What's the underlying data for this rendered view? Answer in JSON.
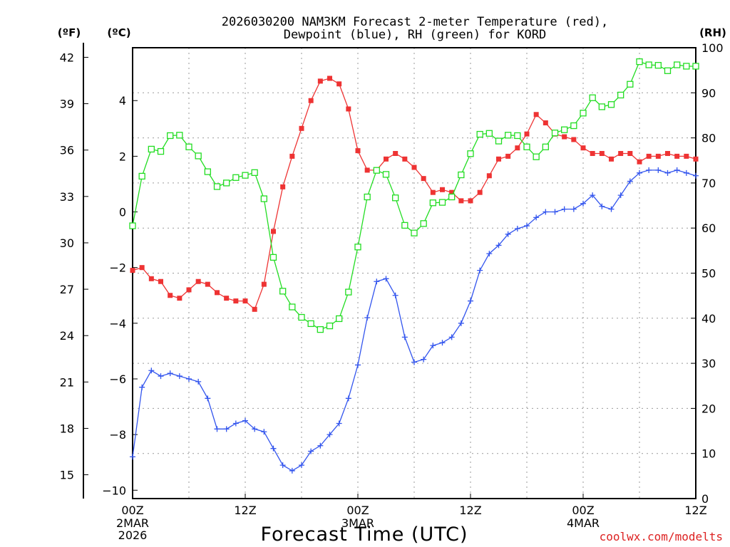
{
  "chart_data": {
    "type": "line",
    "title_line1": "2026030200 NAM3KM Forecast 2-meter Temperature (red),",
    "title_line2": "Dewpoint (blue), RH (green) for KORD",
    "xlabel": "Forecast Time (UTC)",
    "credit": "coolwx.com/modelts",
    "units": {
      "fahrenheit": "(ºF)",
      "celsius": "(ºC)",
      "rh": "(RH)"
    },
    "x_hours_range": [
      0,
      60
    ],
    "x_ticks": [
      {
        "hour": 0,
        "line1": "00Z",
        "line2": "2MAR",
        "line3": "2026"
      },
      {
        "hour": 12,
        "line1": "12Z",
        "line2": "",
        "line3": ""
      },
      {
        "hour": 24,
        "line1": "00Z",
        "line2": "3MAR",
        "line3": ""
      },
      {
        "hour": 36,
        "line1": "12Z",
        "line2": "",
        "line3": ""
      },
      {
        "hour": 48,
        "line1": "00Z",
        "line2": "4MAR",
        "line3": ""
      },
      {
        "hour": 60,
        "line1": "12Z",
        "line2": "",
        "line3": ""
      }
    ],
    "celsius_axis": {
      "range": [
        -10.3,
        5.9
      ],
      "ticks": [
        4,
        2,
        0,
        -2,
        -4,
        -6,
        -8,
        -10
      ],
      "tick_labels": [
        "4",
        "2",
        "0",
        "−2",
        "−4",
        "−6",
        "−8",
        "−10"
      ]
    },
    "fahrenheit_axis": {
      "range": [
        13.46,
        42.62
      ],
      "ticks": [
        42,
        39,
        36,
        33,
        30,
        27,
        24,
        21,
        18,
        15
      ],
      "tick_labels": [
        "42",
        "39",
        "36",
        "33",
        "30",
        "27",
        "24",
        "21",
        "18",
        "15"
      ]
    },
    "rh_axis": {
      "range": [
        0,
        100
      ],
      "ticks": [
        100,
        90,
        80,
        70,
        60,
        50,
        40,
        30,
        20,
        10,
        0
      ],
      "tick_labels": [
        "100",
        "90",
        "80",
        "70",
        "60",
        "50",
        "40",
        "30",
        "20",
        "10",
        "0"
      ]
    },
    "series": [
      {
        "name": "Temperature",
        "unit": "C",
        "color": "#ee3333",
        "marker": "filled-square",
        "x": [
          0,
          1,
          2,
          3,
          4,
          5,
          6,
          7,
          8,
          9,
          10,
          11,
          12,
          13,
          14,
          15,
          16,
          17,
          18,
          19,
          20,
          21,
          22,
          23,
          24,
          25,
          26,
          27,
          28,
          29,
          30,
          31,
          32,
          33,
          34,
          35,
          36,
          37,
          38,
          39,
          40,
          41,
          42,
          43,
          44,
          45,
          46,
          47,
          48,
          49,
          50,
          51,
          52,
          53,
          54,
          55,
          56,
          57,
          58,
          59,
          60
        ],
        "values": [
          -2.1,
          -2.0,
          -2.4,
          -2.5,
          -3.0,
          -3.1,
          -2.8,
          -2.5,
          -2.6,
          -2.9,
          -3.1,
          -3.2,
          -3.2,
          -3.5,
          -2.6,
          -0.7,
          0.9,
          2.0,
          3.0,
          4.0,
          4.7,
          4.8,
          4.6,
          3.7,
          2.2,
          1.5,
          1.5,
          1.9,
          2.1,
          1.9,
          1.6,
          1.2,
          0.7,
          0.8,
          0.7,
          0.4,
          0.4,
          0.7,
          1.3,
          1.9,
          2.0,
          2.3,
          2.8,
          3.5,
          3.2,
          2.8,
          2.7,
          2.6,
          2.3,
          2.1,
          2.1,
          1.9,
          2.1,
          2.1,
          1.8,
          2.0,
          2.0,
          2.1,
          2.0,
          2.0,
          1.9
        ]
      },
      {
        "name": "Dewpoint",
        "unit": "C",
        "color": "#3355ee",
        "marker": "plus",
        "x": [
          0,
          1,
          2,
          3,
          4,
          5,
          6,
          7,
          8,
          9,
          10,
          11,
          12,
          13,
          14,
          15,
          16,
          17,
          18,
          19,
          20,
          21,
          22,
          23,
          24,
          25,
          26,
          27,
          28,
          29,
          30,
          31,
          32,
          33,
          34,
          35,
          36,
          37,
          38,
          39,
          40,
          41,
          42,
          43,
          44,
          45,
          46,
          47,
          48,
          49,
          50,
          51,
          52,
          53,
          54,
          55,
          56,
          57,
          58,
          59,
          60
        ],
        "values": [
          -8.8,
          -6.3,
          -5.7,
          -5.9,
          -5.8,
          -5.9,
          -6.0,
          -6.1,
          -6.7,
          -7.8,
          -7.8,
          -7.6,
          -7.5,
          -7.8,
          -7.9,
          -8.5,
          -9.1,
          -9.3,
          -9.1,
          -8.6,
          -8.4,
          -8.0,
          -7.6,
          -6.7,
          -5.5,
          -3.8,
          -2.5,
          -2.4,
          -3.0,
          -4.5,
          -5.4,
          -5.3,
          -4.8,
          -4.7,
          -4.5,
          -4.0,
          -3.2,
          -2.1,
          -1.5,
          -1.2,
          -0.8,
          -0.6,
          -0.5,
          -0.2,
          0.0,
          0.0,
          0.1,
          0.1,
          0.3,
          0.6,
          0.2,
          0.1,
          0.6,
          1.1,
          1.4,
          1.5,
          1.5,
          1.4,
          1.5,
          1.4,
          1.3
        ]
      },
      {
        "name": "RH",
        "unit": "%",
        "color": "#22dd22",
        "marker": "open-square",
        "x": [
          0,
          1,
          2,
          3,
          4,
          5,
          6,
          7,
          8,
          9,
          10,
          11,
          12,
          13,
          14,
          15,
          16,
          17,
          18,
          19,
          20,
          21,
          22,
          23,
          24,
          25,
          26,
          27,
          28,
          29,
          30,
          31,
          32,
          33,
          34,
          35,
          36,
          37,
          38,
          39,
          40,
          41,
          42,
          43,
          44,
          45,
          46,
          47,
          48,
          49,
          50,
          51,
          52,
          53,
          54,
          55,
          56,
          57,
          58,
          59,
          60
        ],
        "values": [
          60.5,
          71.5,
          77.5,
          77.0,
          80.5,
          80.6,
          78.0,
          76.0,
          72.5,
          69.2,
          70.0,
          71.2,
          71.7,
          72.3,
          66.5,
          53.5,
          46.0,
          42.5,
          40.2,
          38.8,
          37.5,
          38.3,
          39.9,
          45.8,
          55.8,
          66.9,
          72.8,
          71.9,
          66.7,
          60.6,
          58.9,
          61.0,
          65.6,
          65.7,
          66.9,
          71.8,
          76.5,
          80.8,
          81.0,
          79.3,
          80.6,
          80.5,
          78.0,
          75.8,
          78.0,
          81.1,
          81.8,
          82.7,
          85.5,
          88.9,
          86.9,
          87.4,
          89.5,
          91.9,
          96.9,
          96.2,
          96.1,
          94.9,
          96.2,
          95.9,
          95.9
        ]
      }
    ]
  }
}
